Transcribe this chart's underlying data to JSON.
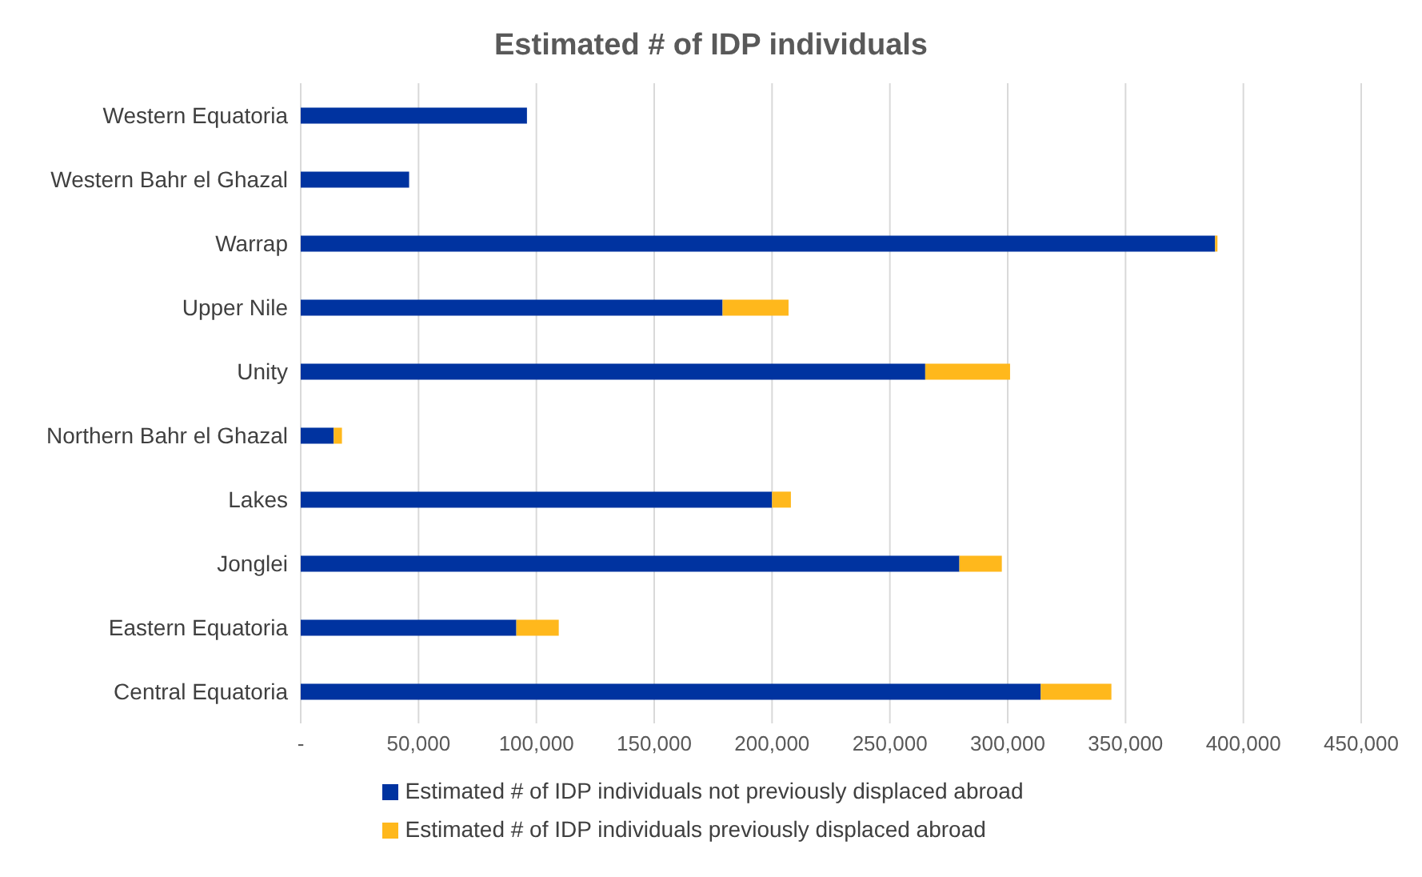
{
  "chart_data": {
    "type": "bar",
    "orientation": "horizontal",
    "stacked": true,
    "title": "Estimated # of IDP individuals",
    "categories": [
      "Western Equatoria",
      "Western Bahr el Ghazal",
      "Warrap",
      "Upper Nile",
      "Unity",
      "Northern Bahr el Ghazal",
      "Lakes",
      "Jonglei",
      "Eastern Equatoria",
      "Central Equatoria"
    ],
    "series": [
      {
        "name": "Estimated # of IDP individuals not previously displaced abroad",
        "color": "#0033a0",
        "values": [
          96000,
          46000,
          388000,
          179000,
          265000,
          14000,
          200000,
          279500,
          91500,
          314000
        ]
      },
      {
        "name": "Estimated # of IDP individuals previously displaced abroad",
        "color": "#ffb81c",
        "values": [
          0,
          0,
          1000,
          28000,
          36000,
          3500,
          8000,
          18000,
          18000,
          30000
        ]
      }
    ],
    "xlim": [
      0,
      450000
    ],
    "xticks": [
      {
        "value": 0,
        "label": "-"
      },
      {
        "value": 50000,
        "label": "50,000"
      },
      {
        "value": 100000,
        "label": "100,000"
      },
      {
        "value": 150000,
        "label": "150,000"
      },
      {
        "value": 200000,
        "label": "200,000"
      },
      {
        "value": 250000,
        "label": "250,000"
      },
      {
        "value": 300000,
        "label": "300,000"
      },
      {
        "value": 350000,
        "label": "350,000"
      },
      {
        "value": 400000,
        "label": "400,000"
      },
      {
        "value": 450000,
        "label": "450,000"
      }
    ],
    "grid": "x",
    "legend": "bottom"
  }
}
